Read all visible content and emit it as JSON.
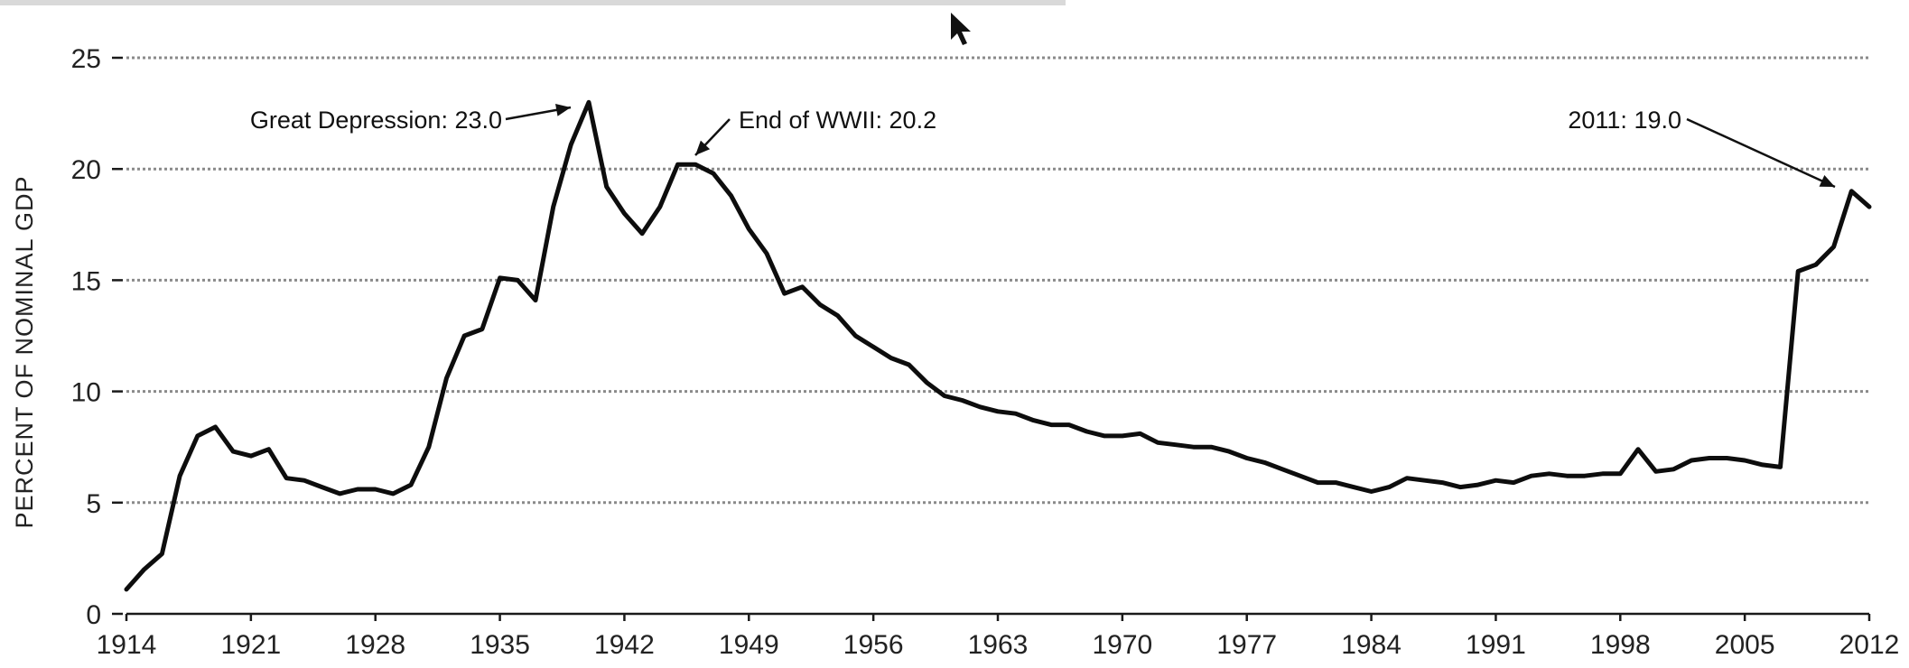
{
  "chart_data": {
    "type": "line",
    "title": "",
    "xlabel": "",
    "ylabel": "PERCENT OF NOMINAL GDP",
    "xlim": [
      1914,
      2012
    ],
    "ylim": [
      0,
      25
    ],
    "x_ticks": [
      "1914",
      "1921",
      "1928",
      "1935",
      "1942",
      "1949",
      "1956",
      "1963",
      "1970",
      "1977",
      "1984",
      "1991",
      "1998",
      "2005",
      "2012"
    ],
    "y_ticks": [
      "0",
      "5",
      "10",
      "15",
      "20",
      "25"
    ],
    "grid": true,
    "series": [
      {
        "x": [
          1914,
          1915,
          1916,
          1917,
          1918,
          1919,
          1920,
          1921,
          1922,
          1923,
          1924,
          1925,
          1926,
          1927,
          1928,
          1929,
          1930,
          1931,
          1932,
          1933,
          1934,
          1935,
          1936,
          1937,
          1938,
          1939,
          1940,
          1941,
          1942,
          1943,
          1944,
          1945,
          1946,
          1947,
          1948,
          1949,
          1950,
          1951,
          1952,
          1953,
          1954,
          1955,
          1956,
          1957,
          1958,
          1959,
          1960,
          1961,
          1962,
          1963,
          1964,
          1965,
          1966,
          1967,
          1968,
          1969,
          1970,
          1971,
          1972,
          1973,
          1974,
          1975,
          1976,
          1977,
          1978,
          1979,
          1980,
          1981,
          1982,
          1983,
          1984,
          1985,
          1986,
          1987,
          1988,
          1989,
          1990,
          1991,
          1992,
          1993,
          1994,
          1995,
          1996,
          1997,
          1998,
          1999,
          2000,
          2001,
          2002,
          2003,
          2004,
          2005,
          2006,
          2007,
          2008,
          2009,
          2010,
          2011,
          2012
        ],
        "values": [
          1.1,
          2.0,
          2.7,
          6.2,
          8.0,
          8.4,
          7.3,
          7.1,
          7.4,
          6.1,
          6.0,
          5.7,
          5.4,
          5.6,
          5.6,
          5.4,
          5.8,
          7.5,
          10.6,
          12.5,
          12.8,
          15.1,
          15.0,
          14.1,
          18.3,
          21.1,
          23.0,
          19.2,
          18.0,
          17.1,
          18.3,
          20.2,
          20.2,
          19.8,
          18.8,
          17.3,
          16.2,
          14.4,
          14.7,
          13.9,
          13.4,
          12.5,
          12.0,
          11.5,
          11.2,
          10.4,
          9.8,
          9.6,
          9.3,
          9.1,
          9.0,
          8.7,
          8.5,
          8.5,
          8.2,
          8.0,
          8.0,
          8.1,
          7.7,
          7.6,
          7.5,
          7.5,
          7.3,
          7.0,
          6.8,
          6.5,
          6.2,
          5.9,
          5.9,
          5.7,
          5.5,
          5.7,
          6.1,
          6.0,
          5.9,
          5.7,
          5.8,
          6.0,
          5.9,
          6.2,
          6.3,
          6.2,
          6.2,
          6.3,
          6.3,
          7.4,
          6.4,
          6.5,
          6.9,
          7.0,
          7.0,
          6.9,
          6.7,
          6.6,
          15.4,
          15.7,
          16.5,
          19.0,
          18.3
        ]
      }
    ],
    "annotations": [
      {
        "label": "Great Depression: 23.0",
        "x": 1940,
        "y": 23.0
      },
      {
        "label": "End of WWII: 20.2",
        "x": 1945,
        "y": 20.2
      },
      {
        "label": "2011: 19.0",
        "x": 2011,
        "y": 19.0
      }
    ]
  }
}
